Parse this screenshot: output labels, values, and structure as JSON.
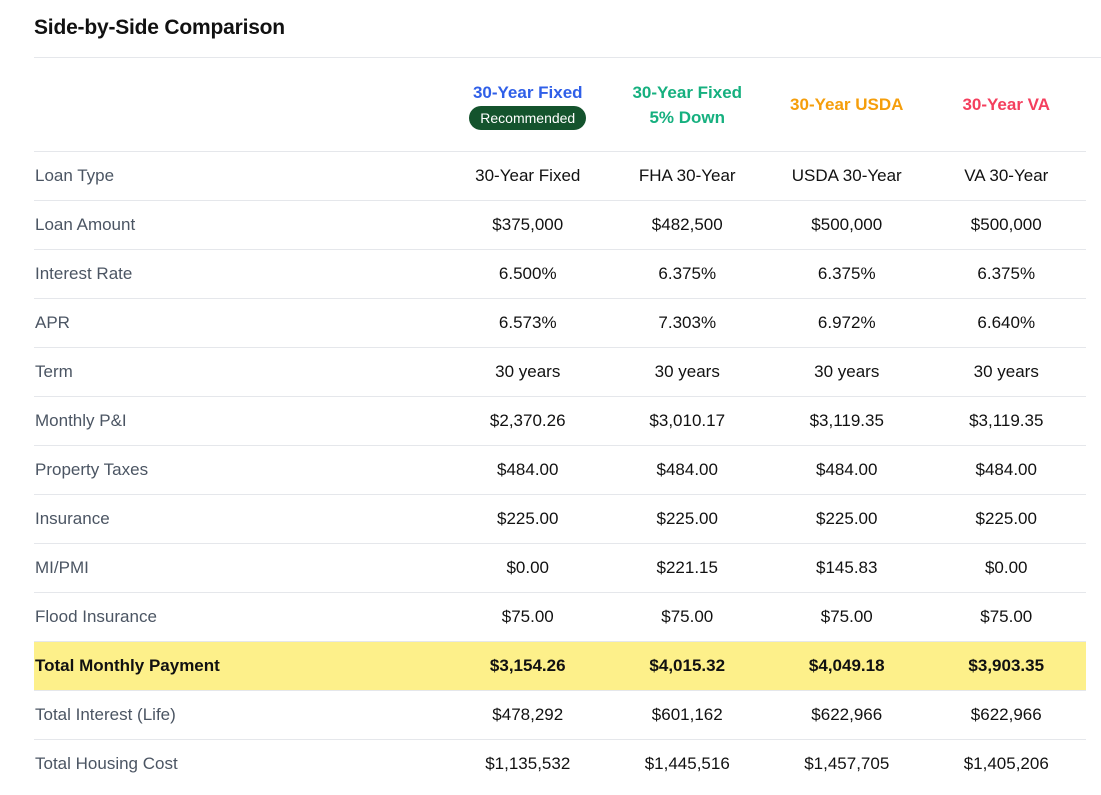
{
  "title": "Side-by-Side Comparison",
  "columns": [
    {
      "name": "30-Year Fixed",
      "badge": "Recommended",
      "color": "#2f5fe8"
    },
    {
      "name": "30-Year Fixed",
      "subname": "5% Down",
      "color": "#16b07f"
    },
    {
      "name": "30-Year USDA",
      "color": "#f59e0b"
    },
    {
      "name": "30-Year VA",
      "color": "#f43f5e"
    }
  ],
  "highlight_color": "#fdf08a",
  "rows": [
    {
      "label": "Loan Type",
      "values": [
        "30-Year Fixed",
        "FHA 30-Year",
        "USDA 30-Year",
        "VA 30-Year"
      ]
    },
    {
      "label": "Loan Amount",
      "values": [
        "$375,000",
        "$482,500",
        "$500,000",
        "$500,000"
      ]
    },
    {
      "label": "Interest Rate",
      "values": [
        "6.500%",
        "6.375%",
        "6.375%",
        "6.375%"
      ]
    },
    {
      "label": "APR",
      "values": [
        "6.573%",
        "7.303%",
        "6.972%",
        "6.640%"
      ]
    },
    {
      "label": "Term",
      "values": [
        "30 years",
        "30 years",
        "30 years",
        "30 years"
      ]
    },
    {
      "label": "Monthly P&I",
      "values": [
        "$2,370.26",
        "$3,010.17",
        "$3,119.35",
        "$3,119.35"
      ]
    },
    {
      "label": "Property Taxes",
      "values": [
        "$484.00",
        "$484.00",
        "$484.00",
        "$484.00"
      ]
    },
    {
      "label": "Insurance",
      "values": [
        "$225.00",
        "$225.00",
        "$225.00",
        "$225.00"
      ]
    },
    {
      "label": "MI/PMI",
      "values": [
        "$0.00",
        "$221.15",
        "$145.83",
        "$0.00"
      ]
    },
    {
      "label": "Flood Insurance",
      "values": [
        "$75.00",
        "$75.00",
        "$75.00",
        "$75.00"
      ]
    },
    {
      "label": "Total Monthly Payment",
      "values": [
        "$3,154.26",
        "$4,015.32",
        "$4,049.18",
        "$3,903.35"
      ],
      "highlight": true
    },
    {
      "label": "Total Interest (Life)",
      "values": [
        "$478,292",
        "$601,162",
        "$622,966",
        "$622,966"
      ]
    },
    {
      "label": "Total Housing Cost",
      "values": [
        "$1,135,532",
        "$1,445,516",
        "$1,457,705",
        "$1,405,206"
      ]
    }
  ]
}
